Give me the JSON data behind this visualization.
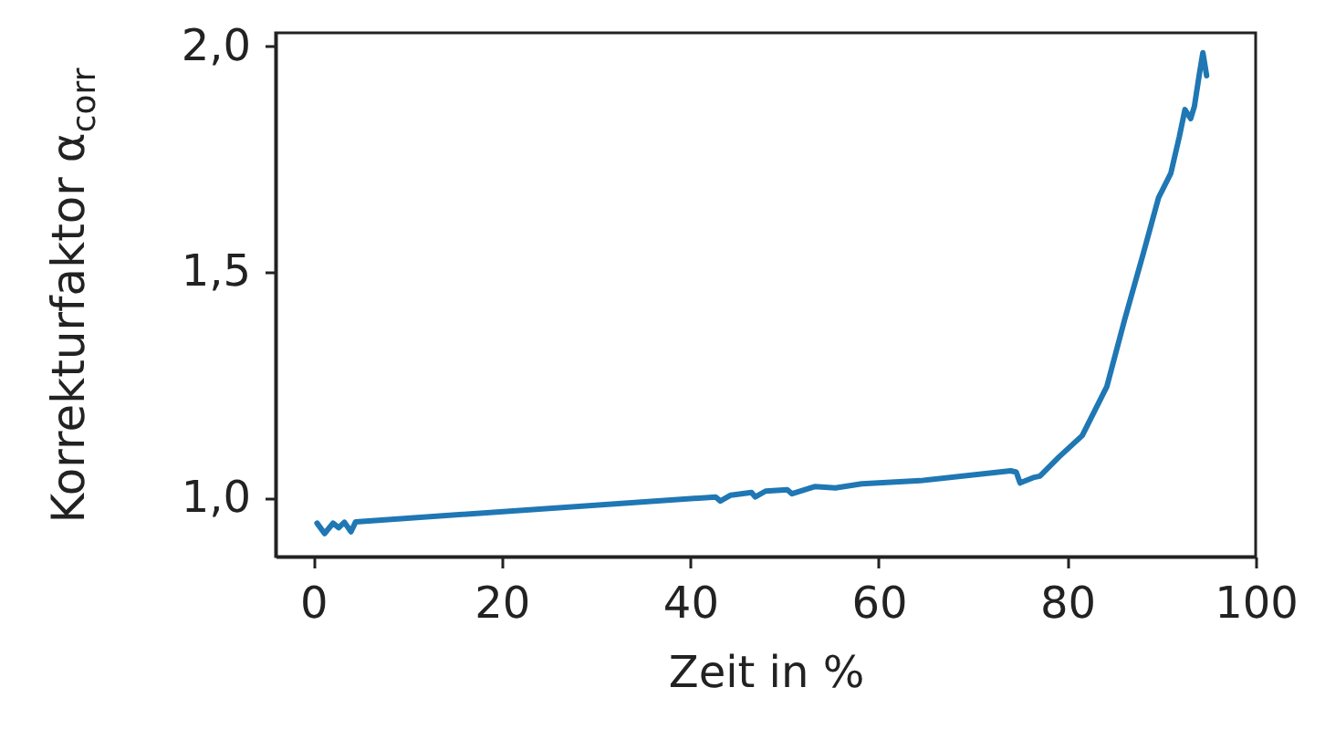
{
  "chart_data": {
    "type": "line",
    "xlabel": "Zeit in %",
    "ylabel": "Korrekturfaktor α$_{corr}$",
    "xlim": [
      -4,
      100
    ],
    "ylim": [
      0.87,
      2.03
    ],
    "xticks": [
      0,
      20,
      40,
      60,
      80,
      100
    ],
    "yticks": [
      {
        "value": 1,
        "label": "1,0"
      },
      {
        "value": 1.5,
        "label": "1,5"
      },
      {
        "value": 2,
        "label": "2,0"
      }
    ],
    "grid": false,
    "marker": "none",
    "line_style": "solid",
    "series": [
      {
        "color": "#1f77b4",
        "x": [
          0.4,
          1.2,
          2.1,
          2.7,
          3.3,
          4.0,
          4.5,
          42.7,
          43.2,
          44.3,
          46.5,
          46.9,
          48.0,
          50.3,
          50.8,
          53.2,
          55.4,
          58.2,
          64.4,
          74.0,
          74.6,
          75.0,
          76.4,
          77.1,
          79.1,
          81.6,
          84.2,
          86.1,
          88.1,
          89.7,
          91.0,
          91.9,
          92.5,
          93.1,
          93.5,
          94.0,
          94.4,
          94.8
        ],
        "values": [
          0.944,
          0.921,
          0.944,
          0.934,
          0.946,
          0.925,
          0.947,
          1.002,
          0.993,
          1.006,
          1.012,
          1.002,
          1.015,
          1.018,
          1.009,
          1.025,
          1.022,
          1.031,
          1.038,
          1.06,
          1.057,
          1.033,
          1.045,
          1.048,
          1.09,
          1.138,
          1.246,
          1.395,
          1.543,
          1.665,
          1.719,
          1.8,
          1.86,
          1.84,
          1.867,
          1.935,
          1.986,
          1.935
        ]
      }
    ]
  }
}
